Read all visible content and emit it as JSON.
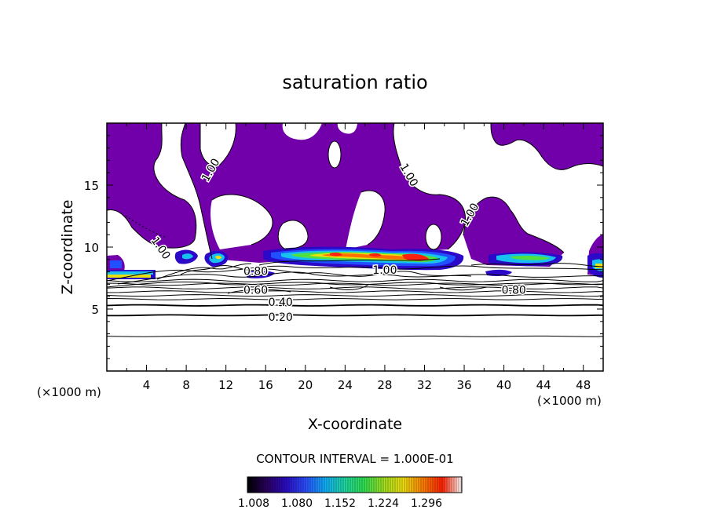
{
  "chart_data": {
    "type": "heatmap",
    "title": "saturation ratio",
    "xlabel": "X-coordinate",
    "ylabel": "Z-coordinate",
    "x_unit": "(×1000 m)",
    "z_unit": "(×1000 m)",
    "xlim": [
      0,
      50
    ],
    "ylim": [
      0,
      20
    ],
    "x_ticks": [
      "4",
      "8",
      "12",
      "16",
      "20",
      "24",
      "28",
      "32",
      "36",
      "40",
      "44",
      "48"
    ],
    "y_ticks": [
      "5",
      "10",
      "15"
    ],
    "contour_interval_text": "CONTOUR INTERVAL = 1.000E-01",
    "contour_labels": [
      {
        "text": "1.00",
        "x": 10.5,
        "z": 16.2,
        "angle": -60
      },
      {
        "text": "1.00",
        "x": 30.4,
        "z": 15.8,
        "angle": 60
      },
      {
        "text": "1.00",
        "x": 36.6,
        "z": 12.6,
        "angle": -60
      },
      {
        "text": "1.00",
        "x": 5.4,
        "z": 9.9,
        "angle": 55
      },
      {
        "text": "0.80",
        "x": 15.0,
        "z": 8.0,
        "angle": 0
      },
      {
        "text": "1.00",
        "x": 28.0,
        "z": 8.1,
        "angle": 0
      },
      {
        "text": "0.60",
        "x": 15.0,
        "z": 6.5,
        "angle": 0
      },
      {
        "text": "0.80",
        "x": 41.0,
        "z": 6.5,
        "angle": 0
      },
      {
        "text": "0.40",
        "x": 17.5,
        "z": 5.5,
        "angle": 0
      },
      {
        "text": "0.20",
        "x": 17.5,
        "z": 4.3,
        "angle": 0
      }
    ],
    "contour_lines_z": [
      2.8,
      4.5,
      5.3,
      5.8,
      6.1,
      6.4,
      6.7,
      7.0,
      7.3
    ],
    "colorbar": {
      "ticks": [
        "1.008",
        "1.080",
        "1.152",
        "1.224",
        "1.296"
      ],
      "colors": [
        "#000000",
        "#2a0060",
        "#2b0cc8",
        "#2a50ff",
        "#10b0f8",
        "#20d8a0",
        "#30e050",
        "#a0e020",
        "#f0e010",
        "#ff8000",
        "#ff2000",
        "#ffffff"
      ]
    },
    "colors": {
      "saturated_fill": "#7100aa",
      "deep_blue": "#2c08c8",
      "blue": "#2050ff",
      "cyan": "#18c0f0",
      "green": "#50e040",
      "yellow": "#e8e010",
      "orange": "#ff7000",
      "red": "#ff2010"
    }
  }
}
